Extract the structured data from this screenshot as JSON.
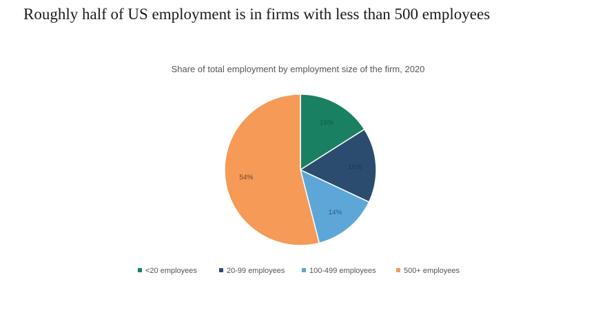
{
  "slide": {
    "title": "Roughly half of US employment is in firms with less than 500 employees"
  },
  "chart_data": {
    "type": "pie",
    "title": "Share of total employment by employment size of the firm, 2020",
    "categories": [
      "<20 employees",
      "20-99 employees",
      "100-499 employees",
      "500+ employees"
    ],
    "values": [
      16,
      16,
      14,
      54
    ],
    "data_labels": [
      "16%",
      "16%",
      "14%",
      "54%"
    ],
    "colors": [
      "#1a8062",
      "#2b4c6e",
      "#5da7d8",
      "#f59a57"
    ],
    "legend_position": "bottom",
    "start_angle": "12 o'clock",
    "direction": "clockwise"
  }
}
